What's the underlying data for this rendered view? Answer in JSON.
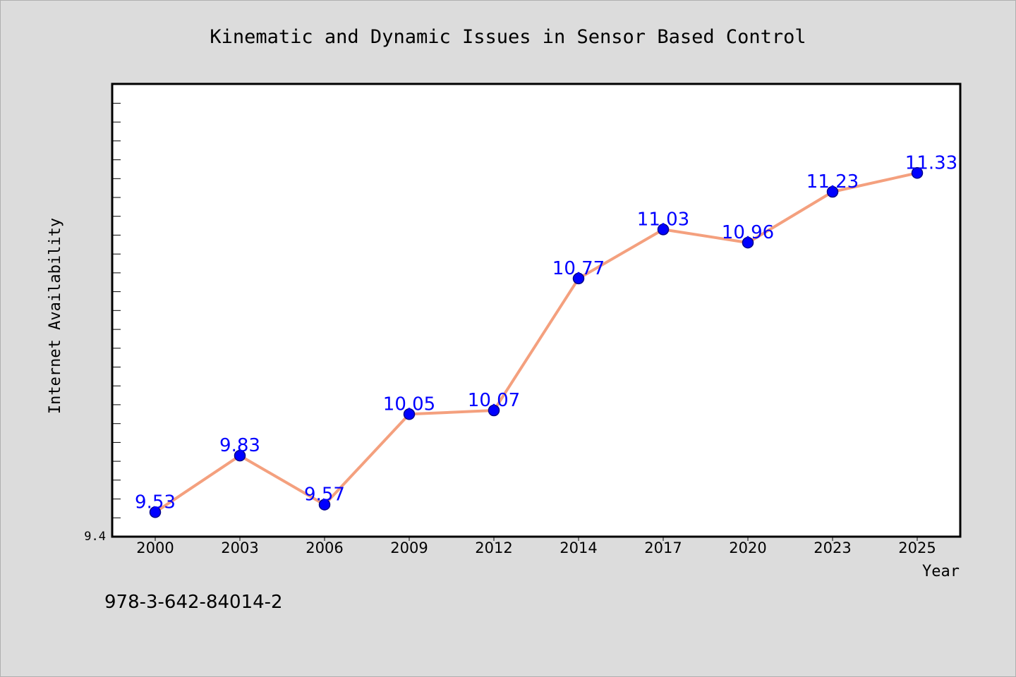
{
  "chart_data": {
    "type": "line",
    "title": "Kinematic and Dynamic Issues in Sensor Based Control",
    "xlabel": "Year",
    "ylabel": "Internet Availability",
    "categories": [
      "2000",
      "2003",
      "2006",
      "2009",
      "2012",
      "2014",
      "2017",
      "2020",
      "2023",
      "2025"
    ],
    "series": [
      {
        "values": [
          9.53,
          9.83,
          9.57,
          10.05,
          10.07,
          10.77,
          11.03,
          10.96,
          11.23,
          11.33
        ]
      }
    ],
    "data_labels": [
      "9.53",
      "9.83",
      "9.57",
      "10.05",
      "10.07",
      "10.77",
      "11.03",
      "10.96",
      "11.23",
      "11.33"
    ],
    "ylim": [
      9.4,
      11.8
    ],
    "y_tick_labels": [
      "9.4"
    ],
    "grid": false,
    "legend": "none",
    "colors": {
      "line": "#f4a07e",
      "marker": "#0000ff",
      "marker_edge": "#00008b",
      "label": "#0000ff",
      "background": "#dcdcdc",
      "plot_bg": "#ffffff"
    }
  },
  "footer": {
    "isbn": "978-3-642-84014-2"
  }
}
